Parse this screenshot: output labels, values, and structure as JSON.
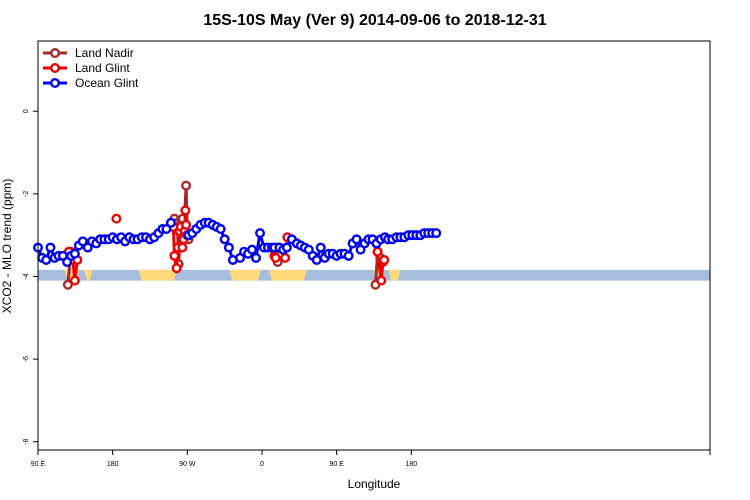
{
  "chart_data": {
    "type": "line",
    "title": "15S-10S May (Ver 9)   2014-09-06 to 2018-12-31",
    "xlabel": "Longitude",
    "ylabel": "XCO2 - MLO trend (ppm)",
    "xlim": [
      -90,
      180
    ],
    "ylim": [
      -8.2,
      1.7
    ],
    "x_ticks": [
      {
        "value": -90,
        "label": "90 E"
      },
      {
        "value": -60,
        "label": "180"
      },
      {
        "value": -30,
        "label": "90 W"
      },
      {
        "value": 0,
        "label": "0"
      },
      {
        "value": 30,
        "label": "90 E"
      },
      {
        "value": 60,
        "label": "180"
      }
    ],
    "y_ticks": [
      {
        "value": 0,
        "label": "0"
      },
      {
        "value": -2,
        "label": "-2"
      },
      {
        "value": -4,
        "label": "-4"
      },
      {
        "value": -6,
        "label": "-6"
      },
      {
        "value": -8,
        "label": "-8"
      }
    ],
    "legend_position": "top-left",
    "land_strip": {
      "y_top": -3.84,
      "y_bottom": -4.1,
      "ocean_color": "#a6bddb",
      "land_color": "#ffd97a"
    },
    "land_segments": [
      [
        -78.2,
        -74.6
      ],
      [
        -70.3,
        -69.2
      ],
      [
        -48.4,
        -35.4
      ],
      [
        -12.0,
        -1.6
      ],
      [
        4.0,
        16.8
      ],
      [
        46.0,
        47.0
      ],
      [
        52.0,
        54.5
      ]
    ],
    "series": [
      {
        "name": "Land Nadir",
        "color": "#a52a2a",
        "x": [
          -78,
          -76.8,
          -35.2,
          -34.7,
          -34.0,
          -33.5,
          -32.5,
          -31.9,
          -31.4,
          -30.5,
          -30.0,
          -29.5,
          -29.1,
          5.5,
          6.3,
          45.6,
          46.5,
          47.5
        ],
        "y": [
          -4.2,
          -3.4,
          -2.6,
          -2.8,
          -2.7,
          -3.7,
          -2.7,
          -2.6,
          -2.9,
          -1.8,
          -2.95,
          -3.1,
          -3.0,
          -3.3,
          -3.65,
          -4.2,
          -3.4,
          -3.55
        ],
        "segments": [
          [
            0,
            1
          ],
          [
            2,
            12
          ],
          [
            13,
            14
          ],
          [
            15,
            17
          ]
        ]
      },
      {
        "name": "Land Glint",
        "color": "#ee0000",
        "x": [
          -77.6,
          -76.0,
          -75.2,
          -74.2,
          -58.5,
          -35.6,
          -35.2,
          -34.3,
          -33.8,
          -33.2,
          -32.6,
          -32.0,
          -31.5,
          -31.0,
          -30.8,
          -30.5,
          -30.1,
          5.0,
          5.5,
          6.1,
          7.0,
          9.3,
          10.2,
          46.4,
          47.9,
          48.6,
          49.1
        ],
        "y": [
          -3.4,
          -3.6,
          -4.1,
          -3.6,
          -2.6,
          -2.8,
          -3.5,
          -3.8,
          -3.3,
          -2.9,
          -2.8,
          -3.3,
          -3.1,
          -2.9,
          -2.4,
          -2.75,
          -3.0,
          -3.5,
          -3.55,
          -3.3,
          -3.3,
          -3.55,
          -3.05,
          -3.4,
          -4.1,
          -3.65,
          -3.6
        ],
        "segments": [
          [
            0,
            3
          ],
          [
            5,
            16
          ],
          [
            17,
            20
          ],
          [
            21,
            22
          ],
          [
            23,
            26
          ]
        ]
      },
      {
        "name": "Ocean Glint",
        "color": "#0000ee",
        "x": [
          -90,
          -88.3,
          -86.7,
          -85.0,
          -83.3,
          -81.7,
          -80.0,
          -78.3,
          -76.7,
          -75.2,
          -73.6,
          -72.0,
          -70.0,
          -68.3,
          -66.6,
          -65.0,
          -63.3,
          -61.6,
          -60.0,
          -58.3,
          -56.6,
          -55.0,
          -53.3,
          -51.6,
          -50.0,
          -48.3,
          -46.6,
          -45.0,
          -43.3,
          -41.6,
          -40.0,
          -38.4,
          -36.6,
          -29.5,
          -28.0,
          -26.4,
          -24.7,
          -23.0,
          -21.4,
          -19.8,
          -18.2,
          -16.6,
          -15.0,
          -13.3,
          -11.7,
          -8.8,
          -7.2,
          -5.6,
          -4.0,
          -2.4,
          -0.8,
          0.8,
          2.4,
          4.0,
          5.0,
          7.0,
          8.5,
          10.0,
          12.0,
          14.0,
          15.6,
          17.2,
          18.8,
          20.4,
          22.0,
          23.6,
          25.2,
          26.8,
          28.4,
          30.0,
          31.6,
          33.2,
          34.8,
          36.4,
          38.0,
          39.6,
          41.2,
          42.8,
          44.4,
          46.0,
          47.7,
          49.4,
          50.7,
          52.3,
          54.0,
          55.6,
          57.2,
          58.8,
          60.4,
          62.0,
          63.6,
          65.2,
          66.8,
          68.4,
          70.0
        ],
        "y": [
          -3.3,
          -3.55,
          -3.6,
          -3.3,
          -3.55,
          -3.5,
          -3.5,
          -3.65,
          -3.5,
          -3.45,
          -3.25,
          -3.15,
          -3.3,
          -3.15,
          -3.2,
          -3.1,
          -3.1,
          -3.1,
          -3.05,
          -3.1,
          -3.05,
          -3.15,
          -3.05,
          -3.1,
          -3.1,
          -3.05,
          -3.05,
          -3.1,
          -3.05,
          -2.95,
          -2.85,
          -2.85,
          -2.7,
          -3.0,
          -2.95,
          -2.85,
          -2.75,
          -2.7,
          -2.7,
          -2.75,
          -2.8,
          -2.85,
          -3.1,
          -3.3,
          -3.6,
          -3.55,
          -3.4,
          -3.45,
          -3.35,
          -3.55,
          -2.95,
          -3.3,
          -3.3,
          -3.3,
          -3.3,
          -3.3,
          -3.35,
          -3.3,
          -3.1,
          -3.2,
          -3.25,
          -3.3,
          -3.35,
          -3.5,
          -3.6,
          -3.3,
          -3.55,
          -3.45,
          -3.45,
          -3.5,
          -3.45,
          -3.45,
          -3.5,
          -3.2,
          -3.1,
          -3.35,
          -3.2,
          -3.1,
          -3.1,
          -3.2,
          -3.1,
          -3.05,
          -3.1,
          -3.1,
          -3.05,
          -3.05,
          -3.05,
          -3.0,
          -3.0,
          -3.0,
          -3.0,
          -2.95,
          -2.95,
          -2.95,
          -2.95
        ],
        "segments": [
          [
            0,
            32
          ],
          [
            33,
            93
          ]
        ]
      }
    ]
  }
}
